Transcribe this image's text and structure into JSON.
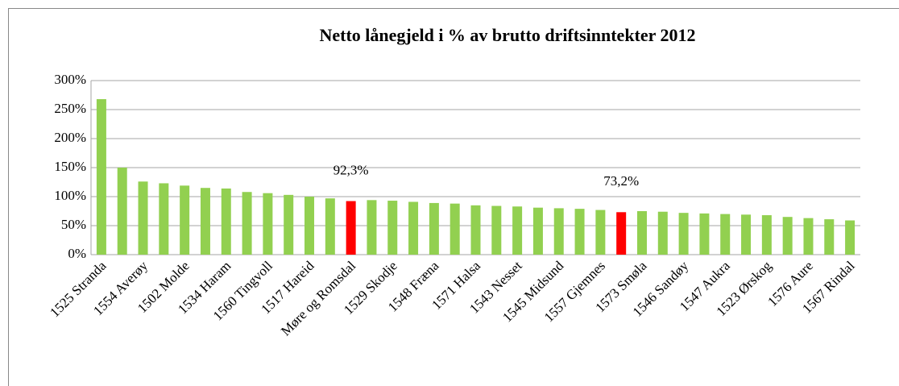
{
  "chart_data": {
    "type": "bar",
    "title": "Netto lånegjeld i % av brutto driftsinntekter 2012",
    "categories": [
      "1525 Stranda",
      null,
      "1554 Averøy",
      null,
      "1502 Molde",
      null,
      "1534 Haram",
      null,
      "1560 Tingvoll",
      null,
      "1517 Hareid",
      null,
      "Møre og Romsdal",
      null,
      "1529 Skodje",
      null,
      "1548 Fræna",
      null,
      "1571 Halsa",
      null,
      "1543 Nesset",
      null,
      "1545 Midsund",
      null,
      "1557 Gjemnes",
      null,
      "1573 Smøla",
      null,
      "1546 Sandøy",
      null,
      "1547 Aukra",
      null,
      "1523 Ørskog",
      null,
      "1576 Aure",
      null,
      "1567 Rindal"
    ],
    "values": [
      268,
      150,
      126,
      123,
      119,
      115,
      114,
      108,
      106,
      103,
      100,
      97,
      92.3,
      94,
      93,
      91,
      89,
      88,
      85,
      84,
      83,
      81,
      80,
      79,
      77,
      73.2,
      75,
      74,
      72,
      71,
      70,
      69,
      68,
      65,
      63,
      61,
      59
    ],
    "value_labels": [
      null,
      null,
      null,
      null,
      null,
      null,
      null,
      null,
      null,
      null,
      null,
      null,
      "92,3%",
      null,
      null,
      null,
      null,
      null,
      null,
      null,
      null,
      null,
      null,
      null,
      null,
      "73,2%",
      null,
      null,
      null,
      null,
      null,
      null,
      null,
      null,
      null,
      null,
      null
    ],
    "colors": [
      "#92d050",
      "#92d050",
      "#92d050",
      "#92d050",
      "#92d050",
      "#92d050",
      "#92d050",
      "#92d050",
      "#92d050",
      "#92d050",
      "#92d050",
      "#92d050",
      "#ff0000",
      "#92d050",
      "#92d050",
      "#92d050",
      "#92d050",
      "#92d050",
      "#92d050",
      "#92d050",
      "#92d050",
      "#92d050",
      "#92d050",
      "#92d050",
      "#92d050",
      "#ff0000",
      "#92d050",
      "#92d050",
      "#92d050",
      "#92d050",
      "#92d050",
      "#92d050",
      "#92d050",
      "#92d050",
      "#92d050",
      "#92d050",
      "#92d050"
    ],
    "ylim": [
      0,
      300
    ],
    "yticks": [
      {
        "value": 0,
        "label": "0%"
      },
      {
        "value": 50,
        "label": "50%"
      },
      {
        "value": 100,
        "label": "100%"
      },
      {
        "value": 150,
        "label": "150%"
      },
      {
        "value": 200,
        "label": "200%"
      },
      {
        "value": 250,
        "label": "250%"
      },
      {
        "value": 300,
        "label": "300%"
      }
    ],
    "grid": true
  }
}
